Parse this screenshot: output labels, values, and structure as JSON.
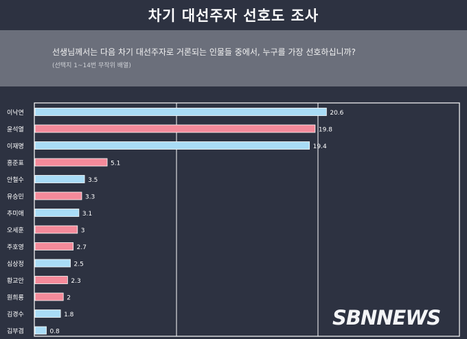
{
  "header": {
    "title": "차기 대선주자 선호도 조사"
  },
  "question": {
    "text": "선생님께서는 다음 차기 대선주자로 거론되는 인물들 중에서, 누구를 가장 선호하십니까?",
    "note": "(선택지 1~14번 무작위 배열)"
  },
  "watermark": "SBNNEWS",
  "chart_data": {
    "type": "bar",
    "orientation": "horizontal",
    "categories": [
      "이낙연",
      "윤석열",
      "이재명",
      "홍준표",
      "안철수",
      "유승민",
      "추미애",
      "오세훈",
      "주호영",
      "심상정",
      "황교안",
      "원희룡",
      "김경수",
      "김부겸"
    ],
    "values": [
      20.6,
      19.8,
      19.4,
      5.1,
      3.5,
      3.3,
      3.1,
      3,
      2.7,
      2.5,
      2.3,
      2,
      1.8,
      0.8
    ],
    "value_labels": [
      "20.6",
      "19.8",
      "19.4",
      "5.1",
      "3.5",
      "3.3",
      "3.1",
      "3",
      "2.7",
      "2.5",
      "2.3",
      "2",
      "1.8",
      "0.8"
    ],
    "bar_colors": [
      "#a9dcf6",
      "#f48a9a",
      "#a9dcf6",
      "#f48a9a",
      "#a9dcf6",
      "#f48a9a",
      "#a9dcf6",
      "#f48a9a",
      "#f48a9a",
      "#a9dcf6",
      "#f48a9a",
      "#f48a9a",
      "#a9dcf6",
      "#a9dcf6"
    ],
    "xlim": [
      0,
      40
    ],
    "gridlines": [
      20,
      40
    ],
    "grid": true,
    "value_labels_shown": true,
    "title": "",
    "xlabel": "",
    "ylabel": ""
  }
}
